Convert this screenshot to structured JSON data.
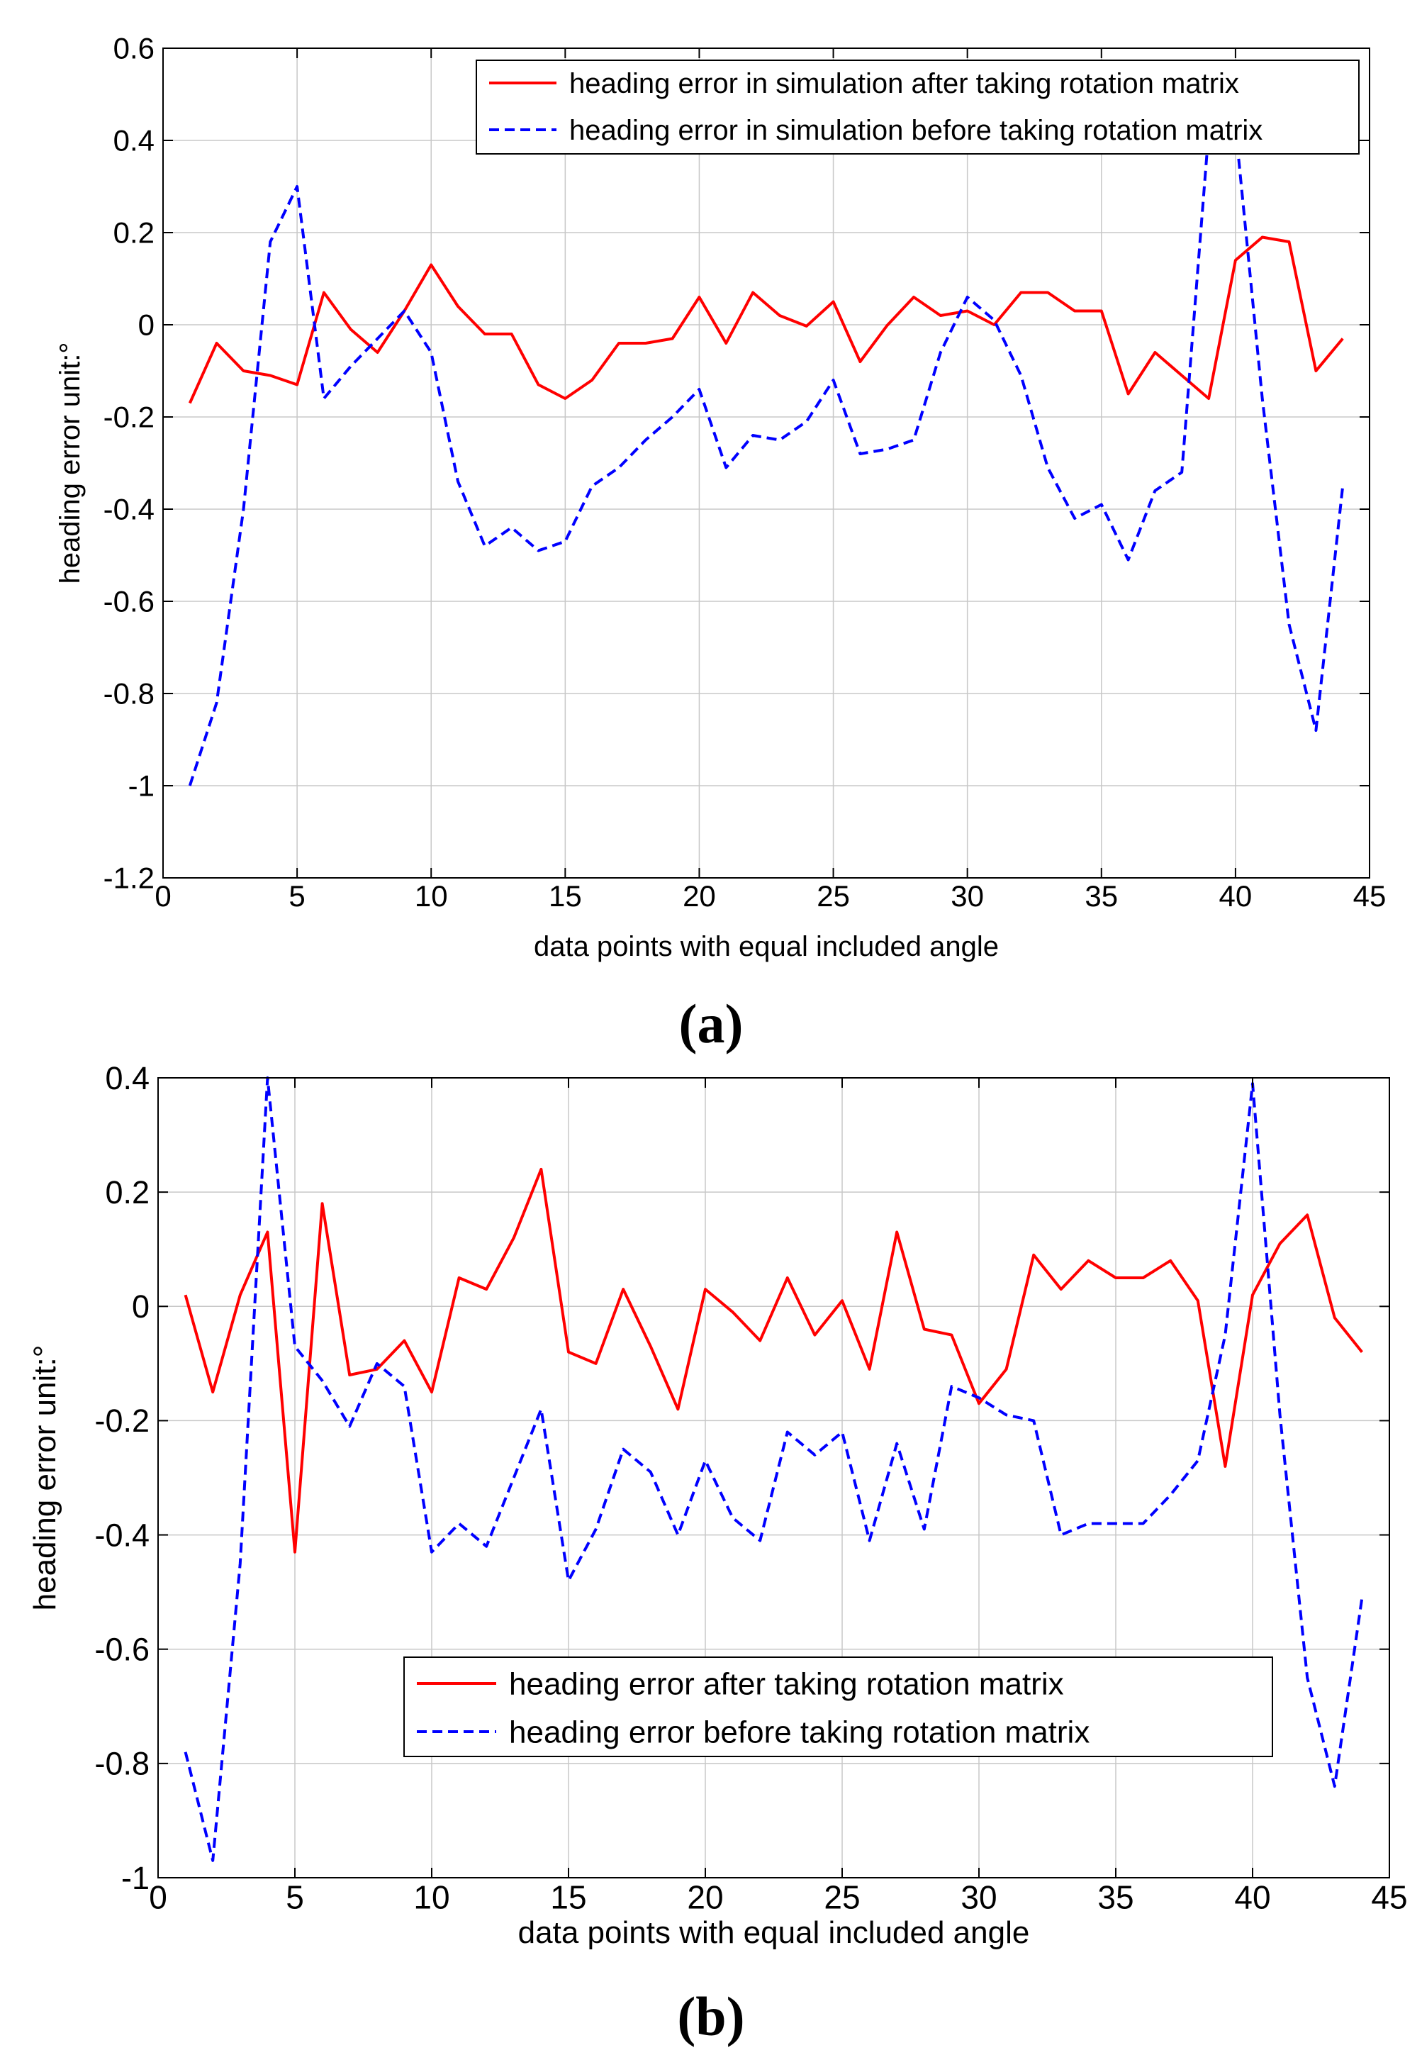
{
  "colors": {
    "after": "#ff0000",
    "before": "#0000ff",
    "grid": "#c8c8c8",
    "axis": "#000000"
  },
  "chart_data": [
    {
      "type": "line",
      "panel_label": "(a)",
      "xlabel": "data points with equal included angle",
      "ylabel": "heading error unit:°",
      "xlim": [
        0,
        45
      ],
      "ylim": [
        -1.2,
        0.6
      ],
      "xticks": [
        0,
        5,
        10,
        15,
        20,
        25,
        30,
        35,
        40,
        45
      ],
      "xtick_labels": [
        "0",
        "5",
        "10",
        "15",
        "20",
        "25",
        "30",
        "35",
        "40",
        "45"
      ],
      "yticks": [
        -1.2,
        -1,
        -0.8,
        -0.6,
        -0.4,
        -0.2,
        0,
        0.2,
        0.4,
        0.6
      ],
      "ytick_labels": [
        "-1.2",
        "-1",
        "-0.8",
        "-0.6",
        "-0.4",
        "-0.2",
        "0",
        "0.2",
        "0.4",
        "0.6"
      ],
      "legend_position": "top-right",
      "x": [
        1,
        2,
        3,
        4,
        5,
        6,
        7,
        8,
        9,
        10,
        11,
        12,
        13,
        14,
        15,
        16,
        17,
        18,
        19,
        20,
        21,
        22,
        23,
        24,
        25,
        26,
        27,
        28,
        29,
        30,
        31,
        32,
        33,
        34,
        35,
        36,
        37,
        38,
        39,
        40,
        41,
        42,
        43,
        44
      ],
      "series": [
        {
          "name": "heading error in simulation after taking rotation matrix",
          "style": "solid",
          "color_key": "after",
          "values": [
            -0.17,
            -0.04,
            -0.1,
            -0.11,
            -0.13,
            0.07,
            -0.01,
            -0.06,
            0.03,
            0.13,
            0.04,
            -0.02,
            -0.02,
            -0.13,
            -0.16,
            -0.12,
            -0.04,
            -0.04,
            -0.03,
            0.06,
            -0.04,
            0.07,
            0.02,
            -0.003,
            0.05,
            -0.08,
            -0.002,
            0.06,
            0.02,
            0.03,
            0.0,
            0.07,
            0.07,
            0.03,
            0.03,
            -0.15,
            -0.06,
            -0.11,
            -0.16,
            0.14,
            0.19,
            0.18,
            -0.1,
            -0.03
          ]
        },
        {
          "name": "heading error in simulation before taking rotation matrix",
          "style": "dashed",
          "color_key": "before",
          "values": [
            -1.0,
            -0.82,
            -0.4,
            0.18,
            0.3,
            -0.16,
            -0.09,
            -0.03,
            0.03,
            -0.06,
            -0.34,
            -0.48,
            -0.44,
            -0.49,
            -0.47,
            -0.35,
            -0.31,
            -0.25,
            -0.2,
            -0.14,
            -0.31,
            -0.24,
            -0.25,
            -0.21,
            -0.12,
            -0.28,
            -0.27,
            -0.25,
            -0.06,
            0.06,
            0.01,
            -0.11,
            -0.31,
            -0.42,
            -0.39,
            -0.51,
            -0.36,
            -0.32,
            0.42,
            0.43,
            -0.16,
            -0.65,
            -0.88,
            -0.35
          ]
        }
      ]
    },
    {
      "type": "line",
      "panel_label": "(b)",
      "xlabel": "data points with equal included angle",
      "ylabel": "heading error unit:°",
      "xlim": [
        0,
        45
      ],
      "ylim": [
        -1,
        0.4
      ],
      "xticks": [
        0,
        5,
        10,
        15,
        20,
        25,
        30,
        35,
        40,
        45
      ],
      "xtick_labels": [
        "0",
        "5",
        "10",
        "15",
        "20",
        "25",
        "30",
        "35",
        "40",
        "45"
      ],
      "yticks": [
        -1,
        -0.8,
        -0.6,
        -0.4,
        -0.2,
        0,
        0.2,
        0.4
      ],
      "ytick_labels": [
        "-1",
        "-0.8",
        "-0.6",
        "-0.4",
        "-0.2",
        "0",
        "0.2",
        "0.4"
      ],
      "legend_position": "lower-middle",
      "x": [
        1,
        2,
        3,
        4,
        5,
        6,
        7,
        8,
        9,
        10,
        11,
        12,
        13,
        14,
        15,
        16,
        17,
        18,
        19,
        20,
        21,
        22,
        23,
        24,
        25,
        26,
        27,
        28,
        29,
        30,
        31,
        32,
        33,
        34,
        35,
        36,
        37,
        38,
        39,
        40,
        41,
        42,
        43,
        44
      ],
      "series": [
        {
          "name": "heading error after taking rotation matrix",
          "style": "solid",
          "color_key": "after",
          "values": [
            0.02,
            -0.15,
            0.02,
            0.13,
            -0.43,
            0.18,
            -0.12,
            -0.11,
            -0.06,
            -0.15,
            0.05,
            0.03,
            0.12,
            0.24,
            -0.08,
            -0.1,
            0.03,
            -0.07,
            -0.18,
            0.03,
            -0.01,
            -0.06,
            0.05,
            -0.05,
            0.01,
            -0.11,
            0.13,
            -0.04,
            -0.05,
            -0.17,
            -0.11,
            0.09,
            0.03,
            0.08,
            0.05,
            0.05,
            0.08,
            0.01,
            -0.28,
            0.02,
            0.11,
            0.16,
            -0.02,
            -0.08
          ]
        },
        {
          "name": "heading error before taking rotation matrix",
          "style": "dashed",
          "color_key": "before",
          "values": [
            -0.78,
            -0.97,
            -0.45,
            0.4,
            -0.07,
            -0.13,
            -0.21,
            -0.1,
            -0.14,
            -0.43,
            -0.38,
            -0.42,
            -0.3,
            -0.18,
            -0.48,
            -0.39,
            -0.25,
            -0.29,
            -0.4,
            -0.27,
            -0.37,
            -0.41,
            -0.22,
            -0.26,
            -0.22,
            -0.41,
            -0.24,
            -0.39,
            -0.14,
            -0.16,
            -0.19,
            -0.2,
            -0.4,
            -0.38,
            -0.38,
            -0.38,
            -0.33,
            -0.27,
            -0.05,
            0.39,
            -0.19,
            -0.65,
            -0.84,
            -0.51
          ]
        }
      ]
    }
  ]
}
